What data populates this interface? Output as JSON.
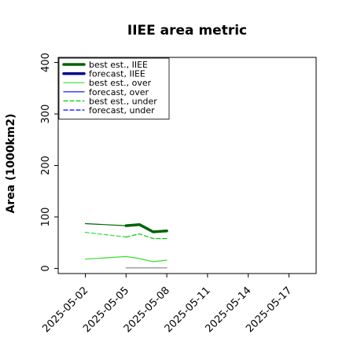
{
  "chart_data": {
    "type": "line",
    "title": "IIEE area metric",
    "xlabel": "",
    "ylabel": "Area (1000km2)",
    "x_ticks": [
      "2025-05-02",
      "2025-05-05",
      "2025-05-08",
      "2025-05-11",
      "2025-05-14",
      "2025-05-17"
    ],
    "highlighted_tick": "2025-05-08",
    "xlim": [
      "2025-04-30",
      "2025-05-19"
    ],
    "ylim": [
      -10,
      410
    ],
    "y_ticks": [
      0,
      100,
      200,
      300,
      400
    ],
    "grid": false,
    "legend_position": "top-left",
    "series": [
      {
        "name": "best est., IIEE",
        "color": "#006400",
        "style": "solid",
        "weight": "thick",
        "points": [
          [
            "2025-05-05",
            83
          ],
          [
            "2025-05-06",
            85
          ],
          [
            "2025-05-07",
            71
          ],
          [
            "2025-05-08",
            73
          ]
        ]
      },
      {
        "name": "forecast, IIEE",
        "color": "#00008b",
        "style": "solid",
        "weight": "thick",
        "points": []
      },
      {
        "name": "best est., over",
        "color": "#33dd33",
        "style": "solid",
        "weight": "thin",
        "points": [
          [
            "2025-05-05",
            23
          ],
          [
            "2025-05-06",
            19
          ],
          [
            "2025-05-07",
            13
          ],
          [
            "2025-05-08",
            16
          ]
        ]
      },
      {
        "name": "forecast, over",
        "color": "#0000ff",
        "style": "solid",
        "weight": "thin",
        "points": []
      },
      {
        "name": "best est., under",
        "color": "#00cc00",
        "style": "dashed",
        "weight": "thin",
        "points": [
          [
            "2025-05-05",
            61
          ],
          [
            "2025-05-06",
            67
          ],
          [
            "2025-05-07",
            58
          ],
          [
            "2025-05-08",
            58
          ]
        ]
      },
      {
        "name": "forecast, under",
        "color": "#0000ff",
        "style": "dashed",
        "weight": "thin",
        "points": []
      }
    ],
    "extra_lines": [
      {
        "color": "#006400",
        "style": "solid",
        "weight": "thin",
        "points": [
          [
            "2025-05-02",
            87
          ],
          [
            "2025-05-05",
            83
          ]
        ]
      },
      {
        "color": "#33dd33",
        "style": "solid",
        "weight": "thin",
        "points": [
          [
            "2025-05-02",
            18
          ],
          [
            "2025-05-05",
            23
          ]
        ]
      },
      {
        "color": "#33dd33",
        "style": "dashed",
        "weight": "thin",
        "points": [
          [
            "2025-05-02",
            70
          ],
          [
            "2025-05-05",
            61
          ]
        ]
      },
      {
        "color": "#808080",
        "style": "solid",
        "weight": "thin",
        "points": [
          [
            "2025-05-05",
            1
          ],
          [
            "2025-05-08",
            1
          ]
        ]
      }
    ]
  }
}
